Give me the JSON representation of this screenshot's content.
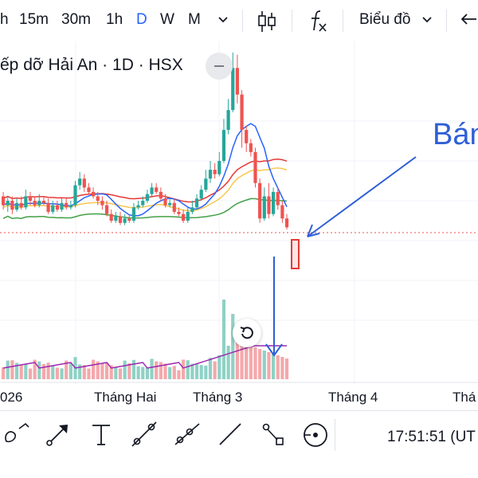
{
  "toolbar": {
    "intervals": [
      "15m",
      "30m",
      "1h",
      "D",
      "W",
      "M"
    ],
    "active_interval": "D",
    "chart_type_label": "Biểu đồ"
  },
  "chart": {
    "title": "ếp dỡ Hải An · 1D · HSX"
  },
  "xaxis": {
    "labels": [
      "026",
      "Tháng Hai",
      "Tháng 3",
      "Tháng 4",
      "Thá"
    ]
  },
  "annotation": {
    "text": "Bán"
  },
  "statusbar": {
    "time": "17:51:51 (UT"
  },
  "colors": {
    "up": "#26a69a",
    "down": "#ef5350",
    "up_volume": "#8fd1c5",
    "down_volume": "#f4a8ab",
    "ma_blue": "#2962ff",
    "ma_red": "#e53935",
    "ma_yellow": "#f9c74f",
    "ma_green": "#43a047",
    "volume_ma": "#9c27b0",
    "annotation": "#2e5fd6"
  },
  "chart_data": {
    "type": "candlestick",
    "candles": [
      [
        40,
        36,
        42,
        34
      ],
      [
        36,
        38,
        40,
        33
      ],
      [
        38,
        34,
        40,
        32
      ],
      [
        34,
        37,
        39,
        33
      ],
      [
        37,
        35,
        40,
        34
      ],
      [
        35,
        40,
        43,
        34
      ],
      [
        40,
        38,
        42,
        36
      ],
      [
        38,
        36,
        40,
        35
      ],
      [
        36,
        38,
        41,
        35
      ],
      [
        38,
        37,
        40,
        36
      ],
      [
        37,
        33,
        39,
        32
      ],
      [
        33,
        36,
        38,
        32
      ],
      [
        36,
        34,
        38,
        33
      ],
      [
        34,
        37,
        39,
        33
      ],
      [
        37,
        35,
        39,
        34
      ],
      [
        35,
        36,
        38,
        34
      ],
      [
        36,
        45,
        47,
        35
      ],
      [
        45,
        48,
        51,
        43
      ],
      [
        48,
        44,
        50,
        42
      ],
      [
        44,
        42,
        46,
        41
      ],
      [
        42,
        40,
        44,
        39
      ],
      [
        40,
        38,
        42,
        36
      ],
      [
        38,
        36,
        40,
        34
      ],
      [
        36,
        32,
        38,
        31
      ],
      [
        32,
        29,
        34,
        28
      ],
      [
        29,
        31,
        33,
        28
      ],
      [
        31,
        28,
        33,
        27
      ],
      [
        28,
        30,
        32,
        27
      ],
      [
        30,
        29,
        32,
        28
      ],
      [
        29,
        35,
        37,
        28
      ],
      [
        35,
        36,
        38,
        34
      ],
      [
        36,
        38,
        40,
        35
      ],
      [
        38,
        41,
        43,
        37
      ],
      [
        41,
        44,
        46,
        40
      ],
      [
        44,
        42,
        46,
        41
      ],
      [
        42,
        39,
        44,
        38
      ],
      [
        39,
        36,
        41,
        35
      ],
      [
        36,
        37,
        39,
        35
      ],
      [
        37,
        33,
        39,
        32
      ],
      [
        33,
        32,
        35,
        31
      ],
      [
        32,
        29,
        34,
        28
      ],
      [
        29,
        33,
        35,
        28
      ],
      [
        33,
        35,
        38,
        32
      ],
      [
        35,
        39,
        41,
        34
      ],
      [
        39,
        43,
        45,
        38
      ],
      [
        43,
        48,
        52,
        42
      ],
      [
        48,
        52,
        56,
        46
      ],
      [
        52,
        50,
        55,
        48
      ],
      [
        50,
        56,
        60,
        49
      ],
      [
        56,
        70,
        75,
        55
      ],
      [
        70,
        79,
        84,
        68
      ],
      [
        79,
        98,
        105,
        78
      ],
      [
        98,
        86,
        104,
        82
      ],
      [
        86,
        70,
        88,
        62
      ],
      [
        70,
        64,
        72,
        60
      ],
      [
        64,
        60,
        66,
        58
      ],
      [
        60,
        46,
        62,
        44
      ],
      [
        46,
        30,
        48,
        28
      ],
      [
        30,
        40,
        44,
        29
      ],
      [
        40,
        32,
        46,
        30
      ],
      [
        32,
        42,
        44,
        31
      ],
      [
        42,
        36,
        44,
        34
      ],
      [
        36,
        30,
        38,
        28
      ],
      [
        30,
        26,
        32,
        25
      ]
    ],
    "ylim": [
      20,
      110
    ]
  }
}
